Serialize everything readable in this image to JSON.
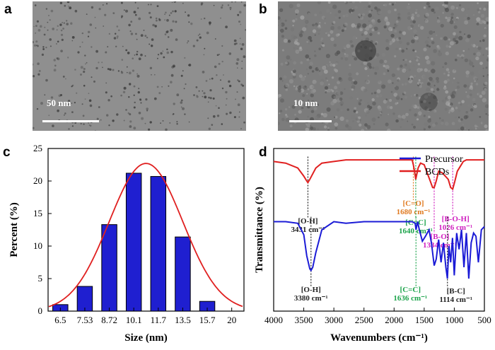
{
  "panels": {
    "a": {
      "letter": "a",
      "scale_label": "50 nm"
    },
    "b": {
      "letter": "b",
      "scale_label": "10 nm"
    },
    "c": {
      "letter": "c"
    },
    "d": {
      "letter": "d"
    }
  },
  "chart_data": [
    {
      "type": "bar",
      "panel": "c",
      "categories": [
        "6.5",
        "7.53",
        "8.72",
        "10.1",
        "11.7",
        "13.5",
        "15.7"
      ],
      "values": [
        1.0,
        3.8,
        13.3,
        21.2,
        20.7,
        11.4,
        1.5
      ],
      "x_tick_labels": [
        "6.5",
        "7.53",
        "8.72",
        "10.1",
        "11.7",
        "13.5",
        "15.7",
        "20"
      ],
      "y_ticks": [
        0,
        5,
        10,
        15,
        20,
        25
      ],
      "xlabel": "Size  (nm)",
      "ylabel": "Percent (%)",
      "ylim": [
        0,
        25
      ],
      "bar_color": "#1f1fd0",
      "fit_curve": {
        "color": "#e02020",
        "peak_x": 10.9,
        "peak_y": 22.7,
        "x": [
          6.5,
          7.53,
          8.72,
          10.1,
          11.7,
          13.5,
          15.7,
          17
        ],
        "y": [
          0.3,
          3.5,
          11.5,
          21.8,
          21.8,
          10.5,
          1.3,
          0.0
        ]
      }
    },
    {
      "type": "line",
      "panel": "d",
      "xlabel": "Wavenumbers (cm⁻¹)",
      "ylabel": "Transmittance (%)",
      "xlim": [
        4000,
        500
      ],
      "x_ticks": [
        4000,
        3500,
        3000,
        2500,
        2000,
        1500,
        1000,
        500
      ],
      "legend": "top-right",
      "series": [
        {
          "name": "Precursor",
          "color": "#1b1bd6",
          "x": [
            4000,
            3800,
            3600,
            3500,
            3450,
            3400,
            3380,
            3350,
            3300,
            3200,
            3000,
            2800,
            2500,
            2200,
            2000,
            1800,
            1700,
            1650,
            1636,
            1610,
            1580,
            1530,
            1480,
            1420,
            1380,
            1334,
            1300,
            1260,
            1220,
            1180,
            1140,
            1114,
            1090,
            1060,
            1030,
            1000,
            960,
            920,
            880,
            840,
            800,
            760,
            720,
            680,
            640,
            600,
            550,
            500
          ],
          "y": [
            0.55,
            0.55,
            0.54,
            0.47,
            0.34,
            0.26,
            0.25,
            0.27,
            0.36,
            0.5,
            0.55,
            0.54,
            0.55,
            0.55,
            0.55,
            0.55,
            0.55,
            0.54,
            0.5,
            0.55,
            0.5,
            0.43,
            0.46,
            0.5,
            0.42,
            0.28,
            0.32,
            0.44,
            0.3,
            0.42,
            0.27,
            0.2,
            0.4,
            0.3,
            0.45,
            0.22,
            0.48,
            0.38,
            0.5,
            0.27,
            0.48,
            0.2,
            0.42,
            0.48,
            0.46,
            0.3,
            0.5,
            0.52
          ]
        },
        {
          "name": "BCDs",
          "color": "#e02020",
          "x": [
            4000,
            3800,
            3600,
            3500,
            3450,
            3431,
            3400,
            3300,
            3200,
            3000,
            2800,
            2500,
            2200,
            2000,
            1800,
            1700,
            1680,
            1660,
            1640,
            1600,
            1560,
            1500,
            1450,
            1400,
            1360,
            1334,
            1300,
            1260,
            1200,
            1150,
            1100,
            1060,
            1026,
            990,
            950,
            900,
            850,
            800,
            700,
            600,
            500
          ],
          "y": [
            0.92,
            0.91,
            0.88,
            0.83,
            0.8,
            0.79,
            0.81,
            0.88,
            0.91,
            0.92,
            0.93,
            0.93,
            0.93,
            0.93,
            0.93,
            0.93,
            0.9,
            0.86,
            0.81,
            0.88,
            0.91,
            0.9,
            0.85,
            0.8,
            0.76,
            0.76,
            0.8,
            0.86,
            0.85,
            0.83,
            0.81,
            0.76,
            0.75,
            0.8,
            0.86,
            0.89,
            0.92,
            0.93,
            0.93,
            0.93,
            0.93
          ]
        }
      ],
      "annotations": [
        {
          "label": "[O-H]",
          "sub": "3431 cm⁻¹",
          "x": 3431,
          "series": "BCDs",
          "color": "#222222"
        },
        {
          "label": "[C=O]",
          "sub": "1680 cm⁻¹",
          "x": 1680,
          "series": "BCDs",
          "color": "#e07a20"
        },
        {
          "label": "[C=C]",
          "sub": "1640 cm⁻¹",
          "x": 1640,
          "series": "BCDs",
          "color": "#1ba34a"
        },
        {
          "label": "[B-O]",
          "sub": "1334 cm⁻¹",
          "x": 1334,
          "series": "BCDs",
          "color": "#d020c0"
        },
        {
          "label": "[B-O-H]",
          "sub": "1026 cm⁻¹",
          "x": 1026,
          "series": "BCDs",
          "color": "#d020c0"
        },
        {
          "label": "[O-H]",
          "sub": "3380 cm⁻¹",
          "x": 3380,
          "series": "Precursor",
          "color": "#222222"
        },
        {
          "label": "[C=C]",
          "sub": "1636 cm⁻¹",
          "x": 1636,
          "series": "Precursor",
          "color": "#1ba34a"
        },
        {
          "label": "[B-C]",
          "sub": "1114 cm⁻¹",
          "x": 1114,
          "series": "Precursor",
          "color": "#222222"
        }
      ]
    }
  ]
}
